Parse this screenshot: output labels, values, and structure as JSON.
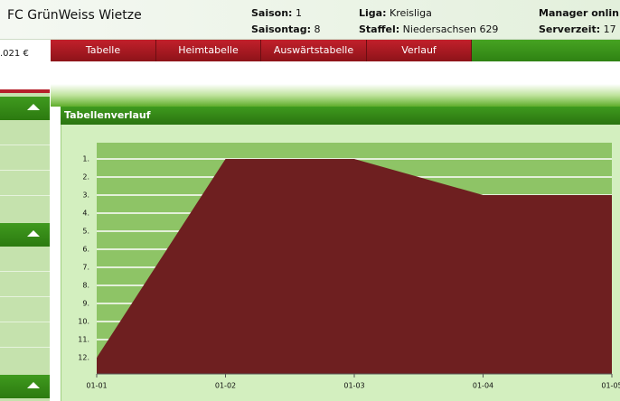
{
  "header": {
    "club": "FC GrünWeiss Wietze",
    "info": [
      {
        "label": "Saison:",
        "value": "1"
      },
      {
        "label": "Saisontag:",
        "value": "8"
      },
      {
        "label": "Liga:",
        "value": "Kreisliga"
      },
      {
        "label": "Staffel:",
        "value": "Niedersachsen 629"
      },
      {
        "label": "Manager onlin",
        "value": ""
      },
      {
        "label": "Serverzeit:",
        "value": "17"
      }
    ]
  },
  "sidebar": {
    "balance": ".021 €"
  },
  "tabs": [
    "Tabelle",
    "Heimtabelle",
    "Auswärtstabelle",
    "Verlauf"
  ],
  "panel_title": "Tabellenverlauf",
  "chart_data": {
    "type": "area",
    "categories": [
      "01-01",
      "01-02",
      "01-03",
      "01-04",
      "01-05"
    ],
    "values": [
      12,
      1,
      1,
      3,
      3
    ],
    "color": "#6e1f20",
    "background": "#8ec466",
    "ylim": [
      12.9,
      0.1
    ],
    "yticks": [
      {
        "value": 1,
        "label": "1."
      },
      {
        "value": 2,
        "label": "2."
      },
      {
        "value": 3,
        "label": "3."
      },
      {
        "value": 4,
        "label": "4."
      },
      {
        "value": 5,
        "label": "5."
      },
      {
        "value": 6,
        "label": "6."
      },
      {
        "value": 7,
        "label": "7."
      },
      {
        "value": 8,
        "label": "8."
      },
      {
        "value": 9,
        "label": "9."
      },
      {
        "value": 10,
        "label": "10."
      },
      {
        "value": 11,
        "label": "11."
      },
      {
        "value": 12,
        "label": "12."
      }
    ],
    "grid": true
  }
}
